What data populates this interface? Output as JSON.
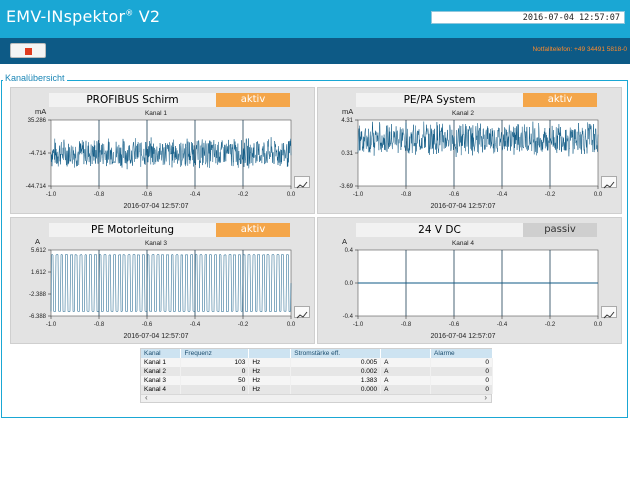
{
  "app": {
    "title": "EMV-INspektor",
    "title_mark": "®",
    "title_version": "V2",
    "datetime": "2016-07-04 12:57:07",
    "emergency": "Notfalltelefon: +49 34491 5818-0",
    "section_title": "Kanalübersicht"
  },
  "colors": {
    "header": "#1aa7d4",
    "toolbar": "#0d5a86",
    "aktiv": "#f4a64a",
    "passiv": "#cfcfcf",
    "signal": "#0f5a85"
  },
  "toolbar": {
    "stop_icon": "stop-icon"
  },
  "panels": [
    {
      "name": "PROFIBUS Schirm",
      "status": "aktiv",
      "channel": "Kanal 1",
      "unit": "mA",
      "timestamp": "2016-07-04 12:57:07",
      "y_ticks": [
        "35.286",
        "-4.714",
        "-44.714"
      ],
      "x_ticks": [
        "-1.0",
        "-0.8",
        "-0.6",
        "-0.4",
        "-0.2",
        "0.0"
      ],
      "chart_data": {
        "type": "line",
        "xlabel": "",
        "ylabel": "mA",
        "xlim": [
          -1.0,
          0.0
        ],
        "ylim": [
          -44.714,
          35.286
        ],
        "signal": "noise",
        "amplitude": 20,
        "offset": -4.714
      }
    },
    {
      "name": "PE/PA System",
      "status": "aktiv",
      "channel": "Kanal 2",
      "unit": "mA",
      "timestamp": "2016-07-04 12:57:07",
      "y_ticks": [
        "4.31",
        "0.31",
        "-3.69"
      ],
      "x_ticks": [
        "-1.0",
        "-0.8",
        "-0.6",
        "-0.4",
        "-0.2",
        "0.0"
      ],
      "chart_data": {
        "type": "line",
        "xlabel": "",
        "ylabel": "mA",
        "xlim": [
          -1.0,
          0.0
        ],
        "ylim": [
          -3.69,
          4.31
        ],
        "signal": "noise",
        "amplitude": 2.2,
        "offset": 2.0
      }
    },
    {
      "name": "PE Motorleitung",
      "status": "aktiv",
      "channel": "Kanal 3",
      "unit": "A",
      "timestamp": "2016-07-04 12:57:07",
      "y_ticks": [
        "5.612",
        "1.612",
        "-2.388",
        "-6.388"
      ],
      "x_ticks": [
        "-1.0",
        "-0.8",
        "-0.6",
        "-0.4",
        "-0.2",
        "0.0"
      ],
      "chart_data": {
        "type": "line",
        "xlabel": "",
        "ylabel": "A",
        "xlim": [
          -1.0,
          0.0
        ],
        "ylim": [
          -6.388,
          5.612
        ],
        "signal": "sine",
        "frequency": 50,
        "amplitude": 5.2,
        "offset": -0.4
      }
    },
    {
      "name": "24 V DC",
      "status": "passiv",
      "channel": "Kanal 4",
      "unit": "A",
      "timestamp": "2016-07-04 12:57:07",
      "y_ticks": [
        "0.4",
        "0.0",
        "-0.4"
      ],
      "x_ticks": [
        "-1.0",
        "-0.8",
        "-0.6",
        "-0.4",
        "-0.2",
        "0.0"
      ],
      "chart_data": {
        "type": "line",
        "xlabel": "",
        "ylabel": "A",
        "xlim": [
          -1.0,
          0.0
        ],
        "ylim": [
          -0.4,
          0.4
        ],
        "signal": "flat",
        "amplitude": 0,
        "offset": 0.0
      }
    }
  ],
  "table": {
    "headers": [
      "Kanal",
      "Frequenz",
      "",
      "Stromstärke eff.",
      "",
      "Alarme"
    ],
    "rows": [
      [
        "Kanal 1",
        "103",
        "Hz",
        "0.005",
        "A",
        "0"
      ],
      [
        "Kanal 2",
        "0",
        "Hz",
        "0.002",
        "A",
        "0"
      ],
      [
        "Kanal 3",
        "50",
        "Hz",
        "1.383",
        "A",
        "0"
      ],
      [
        "Kanal 4",
        "0",
        "Hz",
        "0.000",
        "A",
        "0"
      ]
    ]
  }
}
